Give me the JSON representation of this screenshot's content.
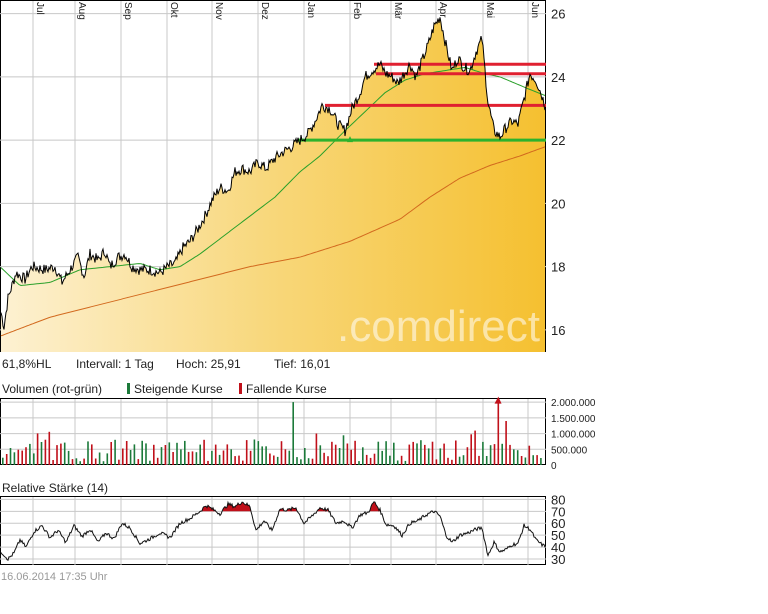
{
  "chart_data": [
    {
      "type": "area",
      "x_ticks": [
        "Jul",
        "Aug",
        "Sep",
        "Okt",
        "Nov",
        "Dez",
        "Jan",
        "Feb",
        "Mär",
        "Apr",
        "Mai",
        "Jun"
      ],
      "y_ticks": [
        16,
        18,
        20,
        22,
        24,
        26
      ],
      "ylim": [
        15.3,
        26.4
      ],
      "grid": true,
      "watermark": ".comdirect",
      "colors": {
        "price_fill": "#f5c43a",
        "price_line": "#000000",
        "ma_short": "#2aa02a",
        "ma_long": "#d2691e",
        "support_line": "#2db22d",
        "resistance_line": "#e02030"
      },
      "price_anchors": [
        [
          0,
          16.7
        ],
        [
          4,
          16.1
        ],
        [
          8,
          17.0
        ],
        [
          16,
          17.8
        ],
        [
          25,
          17.6
        ],
        [
          32,
          18.0
        ],
        [
          45,
          17.9
        ],
        [
          55,
          18.0
        ],
        [
          62,
          17.5
        ],
        [
          70,
          17.9
        ],
        [
          78,
          18.3
        ],
        [
          84,
          17.7
        ],
        [
          90,
          18.4
        ],
        [
          98,
          18.2
        ],
        [
          105,
          18.5
        ],
        [
          110,
          18.0
        ],
        [
          118,
          18.3
        ],
        [
          125,
          18.4
        ],
        [
          132,
          18.0
        ],
        [
          140,
          17.9
        ],
        [
          150,
          17.9
        ],
        [
          160,
          17.8
        ],
        [
          168,
          18.0
        ],
        [
          175,
          18.1
        ],
        [
          183,
          18.6
        ],
        [
          190,
          18.8
        ],
        [
          198,
          19.2
        ],
        [
          205,
          19.6
        ],
        [
          212,
          20.1
        ],
        [
          220,
          20.5
        ],
        [
          228,
          20.4
        ],
        [
          235,
          21.0
        ],
        [
          242,
          21.1
        ],
        [
          250,
          21.0
        ],
        [
          258,
          21.3
        ],
        [
          266,
          21.1
        ],
        [
          274,
          21.4
        ],
        [
          282,
          21.6
        ],
        [
          292,
          21.8
        ],
        [
          300,
          22.0
        ],
        [
          308,
          22.2
        ],
        [
          315,
          22.6
        ],
        [
          322,
          23.1
        ],
        [
          330,
          23.0
        ],
        [
          338,
          22.5
        ],
        [
          345,
          22.3
        ],
        [
          352,
          23.0
        ],
        [
          360,
          23.5
        ],
        [
          365,
          24.0
        ],
        [
          372,
          24.2
        ],
        [
          380,
          24.4
        ],
        [
          386,
          24.1
        ],
        [
          392,
          24.0
        ],
        [
          398,
          23.8
        ],
        [
          404,
          24.1
        ],
        [
          410,
          24.4
        ],
        [
          416,
          24.0
        ],
        [
          422,
          24.5
        ],
        [
          428,
          25.0
        ],
        [
          434,
          25.6
        ],
        [
          440,
          25.9
        ],
        [
          446,
          25.0
        ],
        [
          452,
          24.2
        ],
        [
          458,
          24.6
        ],
        [
          464,
          24.3
        ],
        [
          470,
          24.2
        ],
        [
          476,
          24.8
        ],
        [
          482,
          25.2
        ],
        [
          488,
          23.2
        ],
        [
          494,
          22.3
        ],
        [
          500,
          22.1
        ],
        [
          506,
          22.4
        ],
        [
          512,
          22.6
        ],
        [
          518,
          22.5
        ],
        [
          524,
          23.3
        ],
        [
          530,
          24.1
        ],
        [
          536,
          23.9
        ],
        [
          542,
          23.4
        ],
        [
          546,
          23.0
        ]
      ],
      "ma_short_anchors": [
        [
          0,
          18.0
        ],
        [
          20,
          17.4
        ],
        [
          50,
          17.5
        ],
        [
          80,
          17.9
        ],
        [
          110,
          18.0
        ],
        [
          140,
          18.1
        ],
        [
          160,
          17.9
        ],
        [
          180,
          18.0
        ],
        [
          200,
          18.4
        ],
        [
          225,
          19.0
        ],
        [
          250,
          19.6
        ],
        [
          275,
          20.2
        ],
        [
          300,
          21.0
        ],
        [
          320,
          21.5
        ],
        [
          345,
          22.3
        ],
        [
          365,
          22.9
        ],
        [
          385,
          23.5
        ],
        [
          405,
          23.9
        ],
        [
          425,
          24.1
        ],
        [
          445,
          24.2
        ],
        [
          465,
          24.3
        ],
        [
          485,
          24.1
        ],
        [
          500,
          24.0
        ],
        [
          515,
          23.8
        ],
        [
          530,
          23.6
        ],
        [
          546,
          23.4
        ]
      ],
      "ma_long_anchors": [
        [
          0,
          15.8
        ],
        [
          50,
          16.4
        ],
        [
          100,
          16.8
        ],
        [
          150,
          17.2
        ],
        [
          200,
          17.6
        ],
        [
          250,
          18.0
        ],
        [
          300,
          18.3
        ],
        [
          350,
          18.8
        ],
        [
          400,
          19.5
        ],
        [
          430,
          20.2
        ],
        [
          460,
          20.8
        ],
        [
          490,
          21.2
        ],
        [
          520,
          21.5
        ],
        [
          546,
          21.8
        ]
      ],
      "support_lines": [
        {
          "value": 22.0,
          "x_from": 298
        }
      ],
      "resistance_lines": [
        {
          "value": 23.1,
          "x_from": 325
        },
        {
          "value": 24.1,
          "x_from": 376
        },
        {
          "value": 24.4,
          "x_from": 374
        }
      ],
      "markers": [
        {
          "x": 350,
          "value": 22.0
        }
      ]
    },
    {
      "type": "bar",
      "title": "Volumen (rot-grün)",
      "legend": [
        {
          "name": "Steigende Kurse",
          "color": "#1c7a3a"
        },
        {
          "name": "Fallende Kurse",
          "color": "#c0101a"
        }
      ],
      "y_ticks": [
        "2.000.000",
        "1.500.000",
        "1.000.000",
        "500.000",
        "0"
      ],
      "ylim": [
        0,
        2100000
      ],
      "bar_count": 140,
      "notable_bars": [
        {
          "index": 75,
          "value": 2000000,
          "color": "green"
        },
        {
          "index": 128,
          "value": 2080000,
          "color": "red",
          "marker": "arrow-up"
        },
        {
          "index": 130,
          "value": 1400000,
          "color": "red"
        }
      ]
    },
    {
      "type": "line",
      "title": "Relative Stärke (14)",
      "y_ticks": [
        80,
        70,
        60,
        50,
        40,
        30
      ],
      "ylim": [
        25,
        82
      ],
      "overbought": 70,
      "overbought_color": "#c0101a",
      "anchors": [
        [
          0,
          37
        ],
        [
          8,
          30
        ],
        [
          14,
          35
        ],
        [
          20,
          46
        ],
        [
          26,
          40
        ],
        [
          34,
          53
        ],
        [
          42,
          58
        ],
        [
          50,
          48
        ],
        [
          58,
          54
        ],
        [
          66,
          44
        ],
        [
          74,
          58
        ],
        [
          82,
          49
        ],
        [
          90,
          55
        ],
        [
          98,
          44
        ],
        [
          106,
          52
        ],
        [
          114,
          47
        ],
        [
          122,
          60
        ],
        [
          130,
          56
        ],
        [
          140,
          43
        ],
        [
          150,
          47
        ],
        [
          160,
          52
        ],
        [
          170,
          48
        ],
        [
          180,
          60
        ],
        [
          190,
          64
        ],
        [
          200,
          70
        ],
        [
          206,
          75
        ],
        [
          212,
          72
        ],
        [
          220,
          68
        ],
        [
          228,
          76
        ],
        [
          235,
          74
        ],
        [
          242,
          78
        ],
        [
          250,
          74
        ],
        [
          256,
          54
        ],
        [
          264,
          62
        ],
        [
          272,
          54
        ],
        [
          280,
          72
        ],
        [
          288,
          71
        ],
        [
          296,
          73
        ],
        [
          304,
          60
        ],
        [
          312,
          66
        ],
        [
          320,
          73
        ],
        [
          328,
          71
        ],
        [
          336,
          60
        ],
        [
          344,
          62
        ],
        [
          352,
          56
        ],
        [
          360,
          67
        ],
        [
          368,
          69
        ],
        [
          374,
          78
        ],
        [
          380,
          71
        ],
        [
          386,
          59
        ],
        [
          394,
          58
        ],
        [
          402,
          50
        ],
        [
          410,
          60
        ],
        [
          418,
          62
        ],
        [
          426,
          67
        ],
        [
          434,
          70
        ],
        [
          440,
          66
        ],
        [
          446,
          50
        ],
        [
          452,
          44
        ],
        [
          460,
          50
        ],
        [
          468,
          52
        ],
        [
          476,
          55
        ],
        [
          482,
          56
        ],
        [
          488,
          33
        ],
        [
          494,
          44
        ],
        [
          500,
          36
        ],
        [
          506,
          38
        ],
        [
          512,
          42
        ],
        [
          518,
          43
        ],
        [
          524,
          58
        ],
        [
          530,
          55
        ],
        [
          536,
          46
        ],
        [
          542,
          42
        ],
        [
          546,
          40
        ]
      ]
    }
  ],
  "info": {
    "hl_label": "61,8%HL",
    "interval": "Intervall: 1 Tag",
    "high": "Hoch:  25,91",
    "low": "Tief:  16,01"
  },
  "timestamp": "16.06.2014 17:35 Uhr"
}
